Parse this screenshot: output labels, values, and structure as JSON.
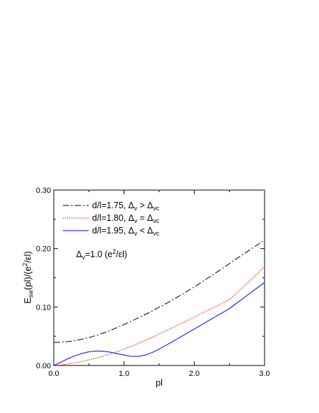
{
  "chart_data": {
    "type": "line",
    "xlabel": "pl",
    "ylabel": {
      "base": "E",
      "sub": "sw",
      "mid": "(pl)/(e",
      "sup": "2",
      "end": "/εl)"
    },
    "xlim": [
      0.0,
      3.0
    ],
    "ylim": [
      0.0,
      0.3
    ],
    "xticks": [
      0.0,
      1.0,
      2.0,
      3.0
    ],
    "xtick_labels": [
      "0.0",
      "1.0",
      "2.0",
      "3.0"
    ],
    "yticks": [
      0.0,
      0.1,
      0.2,
      0.3
    ],
    "ytick_labels": [
      "0.00",
      "0.10",
      "0.20",
      "0.30"
    ],
    "grid": false,
    "legend_position": "top-left",
    "annotation": {
      "base": "Δ",
      "sub": "v",
      "rest1": "=1.0 (e",
      "sup": "2",
      "rest2": "/εl)"
    },
    "series": [
      {
        "name": "d/l=1.75, Δv > Δvc",
        "legend": {
          "prefix": "d/l=1.75, Δ",
          "sub1": "v",
          "op": " > Δ",
          "sub2": "vc"
        },
        "color": "#000000",
        "style": "dash-dot",
        "x": [
          0.0,
          0.1,
          0.2,
          0.3,
          0.4,
          0.5,
          0.6,
          0.7,
          0.8,
          0.9,
          1.0,
          1.1,
          1.2,
          1.3,
          1.4,
          1.5,
          1.6,
          1.7,
          1.8,
          1.9,
          2.0,
          2.1,
          2.2,
          2.3,
          2.4,
          2.5,
          2.6,
          2.7,
          2.8,
          2.9,
          3.0
        ],
        "y": [
          0.0395,
          0.0398,
          0.0408,
          0.0425,
          0.0448,
          0.0477,
          0.0512,
          0.0553,
          0.0598,
          0.0648,
          0.07,
          0.0755,
          0.0812,
          0.0871,
          0.0932,
          0.0996,
          0.106,
          0.1128,
          0.1198,
          0.127,
          0.1345,
          0.142,
          0.15,
          0.158,
          0.166,
          0.1742,
          0.1825,
          0.1905,
          0.1985,
          0.2065,
          0.2145
        ]
      },
      {
        "name": "d/l=1.80, Δv = Δvc",
        "legend": {
          "prefix": "d/l=1.80, Δ",
          "sub1": "v",
          "op": " = Δ",
          "sub2": "vc"
        },
        "color": "#ff0000",
        "style": "dotted",
        "x": [
          0.0,
          0.1,
          0.2,
          0.3,
          0.4,
          0.5,
          0.6,
          0.7,
          0.8,
          0.9,
          1.0,
          1.1,
          1.2,
          1.3,
          1.4,
          1.5,
          1.6,
          1.7,
          1.8,
          1.9,
          2.0,
          2.1,
          2.2,
          2.3,
          2.4,
          2.5,
          2.6,
          2.7,
          2.8,
          2.9,
          3.0
        ],
        "y": [
          0.0,
          0.0008,
          0.0025,
          0.0045,
          0.0068,
          0.0095,
          0.0125,
          0.0158,
          0.0195,
          0.0236,
          0.028,
          0.0327,
          0.0377,
          0.0429,
          0.0483,
          0.0538,
          0.0594,
          0.0651,
          0.0709,
          0.0768,
          0.0828,
          0.0888,
          0.0948,
          0.1008,
          0.1068,
          0.1128,
          0.1239,
          0.135,
          0.146,
          0.157,
          0.17
        ]
      },
      {
        "name": "d/l=1.95, Δv < Δvc",
        "legend": {
          "prefix": "d/l=1.95, Δ",
          "sub1": "v",
          "op": " < Δ",
          "sub2": "vc"
        },
        "color": "#0000ff",
        "style": "solid",
        "x": [
          0.0,
          0.1,
          0.2,
          0.3,
          0.4,
          0.5,
          0.6,
          0.7,
          0.8,
          0.9,
          1.0,
          1.1,
          1.2,
          1.3,
          1.4,
          1.5,
          1.6,
          1.7,
          1.8,
          1.9,
          2.0,
          2.1,
          2.2,
          2.3,
          2.4,
          2.5,
          2.6,
          2.7,
          2.8,
          2.9,
          3.0
        ],
        "y": [
          0.0,
          0.0055,
          0.0115,
          0.0165,
          0.0205,
          0.0235,
          0.0248,
          0.0245,
          0.0228,
          0.0203,
          0.0178,
          0.0158,
          0.0155,
          0.0178,
          0.0222,
          0.0282,
          0.0347,
          0.0415,
          0.0484,
          0.0554,
          0.0624,
          0.0694,
          0.0764,
          0.0834,
          0.0903,
          0.0972,
          0.1063,
          0.1153,
          0.1243,
          0.1332,
          0.142
        ]
      }
    ]
  }
}
